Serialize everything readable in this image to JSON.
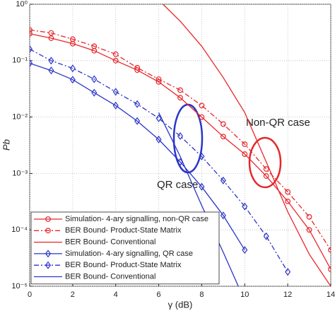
{
  "chart_data": {
    "type": "line",
    "xlabel": "γ (dB)",
    "ylabel": "Pb",
    "xlim": [
      0,
      14
    ],
    "xticks": [
      0,
      2,
      4,
      6,
      8,
      10,
      12,
      14
    ],
    "ylim": [
      1e-05,
      1
    ],
    "yscale": "log",
    "yticks": [
      {
        "value": 1e-05,
        "label": "10⁻⁵"
      },
      {
        "value": 0.0001,
        "label": "10⁻⁴"
      },
      {
        "value": 0.001,
        "label": "10⁻³"
      },
      {
        "value": 0.01,
        "label": "10⁻²"
      },
      {
        "value": 0.1,
        "label": "10⁻¹"
      },
      {
        "value": 1,
        "label": "10⁰"
      }
    ],
    "grid": true,
    "legend": "lower left",
    "annotations": [
      "Non-QR case",
      "QR case"
    ],
    "series": [
      {
        "name": "Simulation- 4-ary signalling, non-QR case",
        "color": "#e8262a",
        "dash": "solid",
        "marker": "circle",
        "x": [
          0,
          1,
          2,
          3,
          4,
          5,
          6,
          7,
          8,
          9,
          10,
          11,
          12,
          13,
          14
        ],
        "values": [
          0.3,
          0.25,
          0.2,
          0.15,
          0.1,
          0.068,
          0.042,
          0.022,
          0.01,
          0.0045,
          0.0022,
          0.0009,
          0.00032,
          0.0001,
          2e-05
        ]
      },
      {
        "name": "BER Bound- Product-State Matrix",
        "color": "#e8262a",
        "dash": "dashdot",
        "marker": "circle",
        "x": [
          0,
          1,
          2,
          3,
          4,
          5,
          6,
          7,
          8,
          9,
          10,
          11,
          12,
          13,
          14
        ],
        "values": [
          0.35,
          0.31,
          0.24,
          0.18,
          0.13,
          0.075,
          0.047,
          0.03,
          0.016,
          0.0075,
          0.0033,
          0.0012,
          0.00047,
          0.00017,
          4.4e-05
        ]
      },
      {
        "name": "BER Bound- Conventional",
        "color": "#e8262a",
        "dash": "solid",
        "marker": "none",
        "x": [
          6.2,
          7,
          8,
          9,
          10,
          11,
          12,
          13,
          14
        ],
        "values": [
          1,
          0.5,
          0.18,
          0.05,
          0.012,
          0.0016,
          0.00021,
          3.7e-05,
          1e-05
        ]
      },
      {
        "name": "Simulation- 4-ary signalling, QR case",
        "color": "#2b35c9",
        "dash": "solid",
        "marker": "diamond",
        "x": [
          0,
          1,
          2,
          3,
          4,
          5,
          6,
          7,
          8,
          9,
          10
        ],
        "values": [
          0.09,
          0.067,
          0.046,
          0.027,
          0.016,
          0.0085,
          0.004,
          0.0016,
          0.00058,
          0.00018,
          4.4e-05
        ]
      },
      {
        "name": "BER Bound- Product-State Matrix",
        "color": "#2b35c9",
        "dash": "dashdot",
        "marker": "diamond",
        "x": [
          0,
          1,
          2,
          3,
          4,
          5,
          6,
          7,
          8,
          9,
          10,
          11,
          12
        ],
        "values": [
          0.16,
          0.1,
          0.073,
          0.047,
          0.028,
          0.017,
          0.0095,
          0.0046,
          0.002,
          0.00075,
          0.00026,
          7.7e-05,
          1.8e-05
        ]
      },
      {
        "name": "BER Bound- Conventional",
        "color": "#2b35c9",
        "dash": "solid",
        "marker": "none",
        "x": [
          6,
          7,
          8,
          9,
          9.7
        ],
        "values": [
          0.012,
          0.002,
          0.00027,
          4e-05,
          1e-05
        ]
      }
    ]
  }
}
